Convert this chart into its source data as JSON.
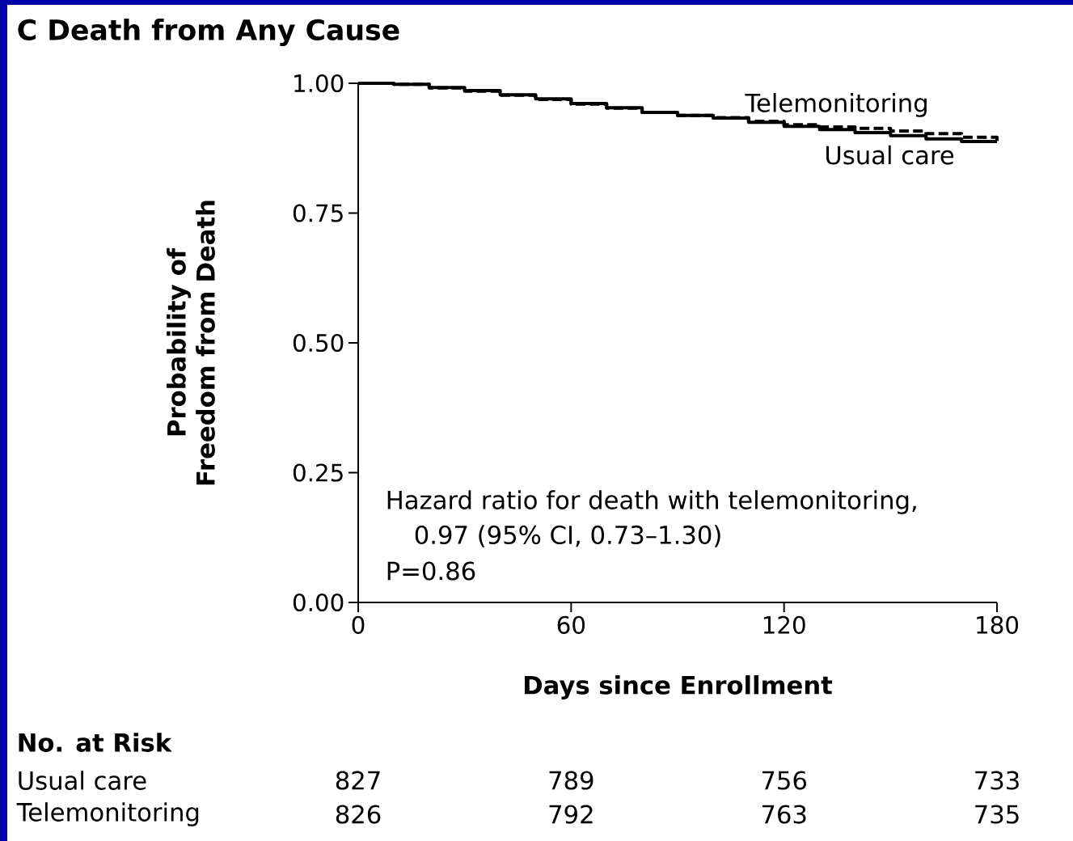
{
  "chart_data": {
    "type": "step",
    "title": "C  Death from Any Cause",
    "xlabel": "Days since Enrollment",
    "ylabel": "Probability of Freedom from Death",
    "xlim": [
      0,
      180
    ],
    "xticks": [
      0,
      60,
      120,
      180
    ],
    "ylim": [
      0,
      1
    ],
    "yticks": [
      {
        "value": 0,
        "label": "0.00"
      },
      {
        "value": 0.25,
        "label": "0.25"
      },
      {
        "value": 0.5,
        "label": "0.50"
      },
      {
        "value": 0.75,
        "label": "0.75"
      },
      {
        "value": 1,
        "label": "1.00"
      }
    ],
    "x": [
      0,
      10,
      20,
      30,
      40,
      50,
      60,
      70,
      80,
      90,
      100,
      110,
      120,
      130,
      140,
      150,
      160,
      170,
      180
    ],
    "series": [
      {
        "name": "Telemonitoring",
        "color": "#000000",
        "line_style": "dashed",
        "values": [
          1.0,
          0.998,
          0.991,
          0.985,
          0.977,
          0.969,
          0.96,
          0.952,
          0.944,
          0.938,
          0.934,
          0.927,
          0.92,
          0.916,
          0.913,
          0.908,
          0.903,
          0.896,
          0.888
        ]
      },
      {
        "name": "Usual care",
        "color": "#000000",
        "line_style": "solid",
        "values": [
          1.0,
          0.998,
          0.992,
          0.986,
          0.978,
          0.97,
          0.961,
          0.953,
          0.944,
          0.938,
          0.933,
          0.925,
          0.917,
          0.911,
          0.905,
          0.899,
          0.893,
          0.888,
          0.888
        ]
      }
    ],
    "annotations": [
      "Hazard ratio for death with telemonitoring,",
      "0.97 (95% CI, 0.73–1.30)",
      "P=0.86",
      "No. at Risk",
      "Usual care",
      "827",
      "789",
      "756",
      "733",
      "Telemonitoring",
      "826",
      "792",
      "763",
      "735"
    ],
    "grid": false,
    "legend": false
  }
}
